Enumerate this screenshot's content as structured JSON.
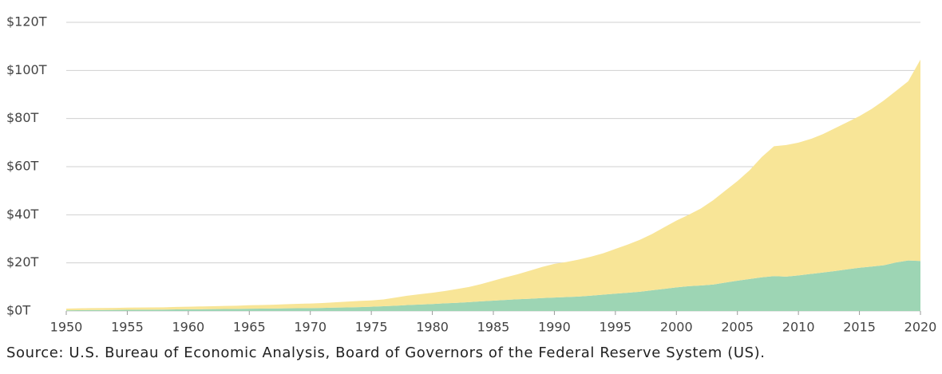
{
  "chart_data": {
    "type": "stacked-area",
    "source": "Source: U.S. Bureau of Economic Analysis, Board of Governors of the Federal Reserve System (US).",
    "x": [
      1950,
      1951,
      1952,
      1953,
      1954,
      1955,
      1956,
      1957,
      1958,
      1959,
      1960,
      1961,
      1962,
      1963,
      1964,
      1965,
      1966,
      1967,
      1968,
      1969,
      1970,
      1971,
      1972,
      1973,
      1974,
      1975,
      1976,
      1977,
      1978,
      1979,
      1980,
      1981,
      1982,
      1983,
      1984,
      1985,
      1986,
      1987,
      1988,
      1989,
      1990,
      1991,
      1992,
      1993,
      1994,
      1995,
      1996,
      1997,
      1998,
      1999,
      2000,
      2001,
      2002,
      2003,
      2004,
      2005,
      2006,
      2007,
      2008,
      2009,
      2010,
      2011,
      2012,
      2013,
      2014,
      2015,
      2016,
      2017,
      2018,
      2019,
      2020
    ],
    "series": [
      {
        "color": "#9dd5b4",
        "values": [
          0.3,
          0.35,
          0.4,
          0.42,
          0.45,
          0.5,
          0.52,
          0.55,
          0.6,
          0.65,
          0.7,
          0.72,
          0.78,
          0.82,
          0.88,
          0.95,
          1.0,
          1.05,
          1.12,
          1.18,
          1.2,
          1.3,
          1.4,
          1.5,
          1.6,
          1.8,
          2.0,
          2.2,
          2.5,
          2.7,
          2.9,
          3.2,
          3.4,
          3.7,
          4.0,
          4.3,
          4.6,
          4.9,
          5.1,
          5.4,
          5.6,
          5.8,
          6.0,
          6.4,
          6.8,
          7.2,
          7.6,
          8.0,
          8.6,
          9.2,
          9.8,
          10.3,
          10.6,
          11.0,
          11.8,
          12.6,
          13.3,
          14.0,
          14.5,
          14.3,
          14.8,
          15.4,
          16.0,
          16.6,
          17.3,
          18.0,
          18.5,
          19.0,
          20.2,
          21.0,
          20.8
        ]
      },
      {
        "color": "#f8e597",
        "values": [
          0.7,
          0.75,
          0.8,
          0.83,
          0.85,
          0.9,
          0.93,
          0.95,
          0.95,
          1.05,
          1.1,
          1.18,
          1.22,
          1.28,
          1.32,
          1.45,
          1.5,
          1.55,
          1.68,
          1.82,
          1.9,
          2.0,
          2.2,
          2.4,
          2.6,
          2.6,
          2.8,
          3.4,
          3.9,
          4.3,
          4.7,
          5.1,
          5.7,
          6.3,
          7.2,
          8.3,
          9.4,
          10.4,
          11.7,
          12.9,
          14.0,
          14.6,
          15.4,
          16.2,
          17.2,
          18.6,
          20.0,
          21.6,
          23.4,
          25.6,
          27.8,
          29.7,
          32.0,
          35.0,
          38.2,
          41.4,
          45.2,
          50.0,
          54.0,
          54.7,
          55.2,
          56.1,
          57.5,
          59.4,
          61.2,
          63.0,
          65.5,
          68.5,
          71.3,
          74.5,
          83.7
        ]
      }
    ],
    "xlim": [
      1950,
      2020
    ],
    "xticks": [
      1950,
      1955,
      1960,
      1965,
      1970,
      1975,
      1980,
      1985,
      1990,
      1995,
      2000,
      2005,
      2010,
      2015,
      2020
    ],
    "ylim": [
      0,
      120
    ],
    "yticks": [
      {
        "value": 0,
        "label": "$0T"
      },
      {
        "value": 20,
        "label": "$20T"
      },
      {
        "value": 40,
        "label": "$40T"
      },
      {
        "value": 60,
        "label": "$60T"
      },
      {
        "value": 80,
        "label": "$80T"
      },
      {
        "value": 100,
        "label": "$100T"
      },
      {
        "value": 120,
        "label": "$120T"
      }
    ],
    "grid": true
  }
}
